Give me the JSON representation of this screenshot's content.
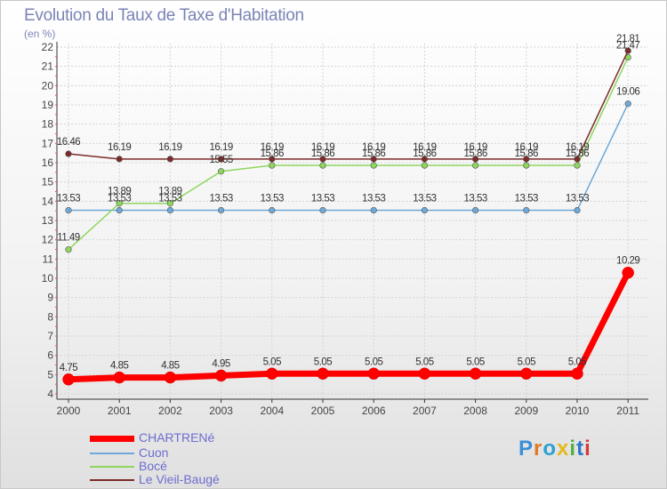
{
  "title": "Evolution du Taux de Taxe d'Habitation",
  "unit": "(en %)",
  "logo": "Proxiti",
  "chart_data": {
    "type": "line",
    "title": "Evolution du Taux de Taxe d'Habitation",
    "ylabel": "(en %)",
    "xlabel": "",
    "ylim": [
      4,
      22
    ],
    "categories": [
      "2000",
      "2001",
      "2002",
      "2003",
      "2004",
      "2005",
      "2006",
      "2007",
      "2008",
      "2009",
      "2010",
      "2011"
    ],
    "yticks": [
      "4",
      "5",
      "6",
      "7",
      "8",
      "9",
      "10",
      "11",
      "12",
      "13",
      "14",
      "15",
      "16",
      "17",
      "18",
      "19",
      "20",
      "21",
      "22"
    ],
    "series": [
      {
        "name": "CHARTRENé",
        "color": "#ff0000",
        "values": [
          4.75,
          4.85,
          4.85,
          4.95,
          5.05,
          5.05,
          5.05,
          5.05,
          5.05,
          5.05,
          5.05,
          10.29
        ],
        "labels": [
          "4.75",
          "4.85",
          "4.85",
          "4.95",
          "5.05",
          "5.05",
          "5.05",
          "5.05",
          "5.05",
          "5.05",
          "5.05",
          "10.29"
        ]
      },
      {
        "name": "Cuon",
        "color": "#6fa8d6",
        "values": [
          13.53,
          13.53,
          13.53,
          13.53,
          13.53,
          13.53,
          13.53,
          13.53,
          13.53,
          13.53,
          13.53,
          19.06
        ],
        "labels": [
          "13.53",
          "13.53",
          "13.53",
          "13.53",
          "13.53",
          "13.53",
          "13.53",
          "13.53",
          "13.53",
          "13.53",
          "13.53",
          "19.06"
        ]
      },
      {
        "name": "Bocé",
        "color": "#8ed65e",
        "values": [
          11.49,
          13.89,
          13.89,
          15.55,
          15.86,
          15.86,
          15.86,
          15.86,
          15.86,
          15.86,
          15.86,
          21.47
        ],
        "labels": [
          "11.49",
          "13.89",
          "13.89",
          "15.55",
          "15.86",
          "15.86",
          "15.86",
          "15.86",
          "15.86",
          "15.86",
          "15.86",
          "21.47"
        ]
      },
      {
        "name": "Le Vieil-Baugé",
        "color": "#7d2a2a",
        "values": [
          16.46,
          16.19,
          16.19,
          16.19,
          16.19,
          16.19,
          16.19,
          16.19,
          16.19,
          16.19,
          16.19,
          21.81
        ],
        "labels": [
          "16.46",
          "16.19",
          "16.19",
          "16.19",
          "16.19",
          "16.19",
          "16.19",
          "16.19",
          "16.19",
          "16.19",
          "16.19",
          "21.81"
        ]
      }
    ]
  }
}
